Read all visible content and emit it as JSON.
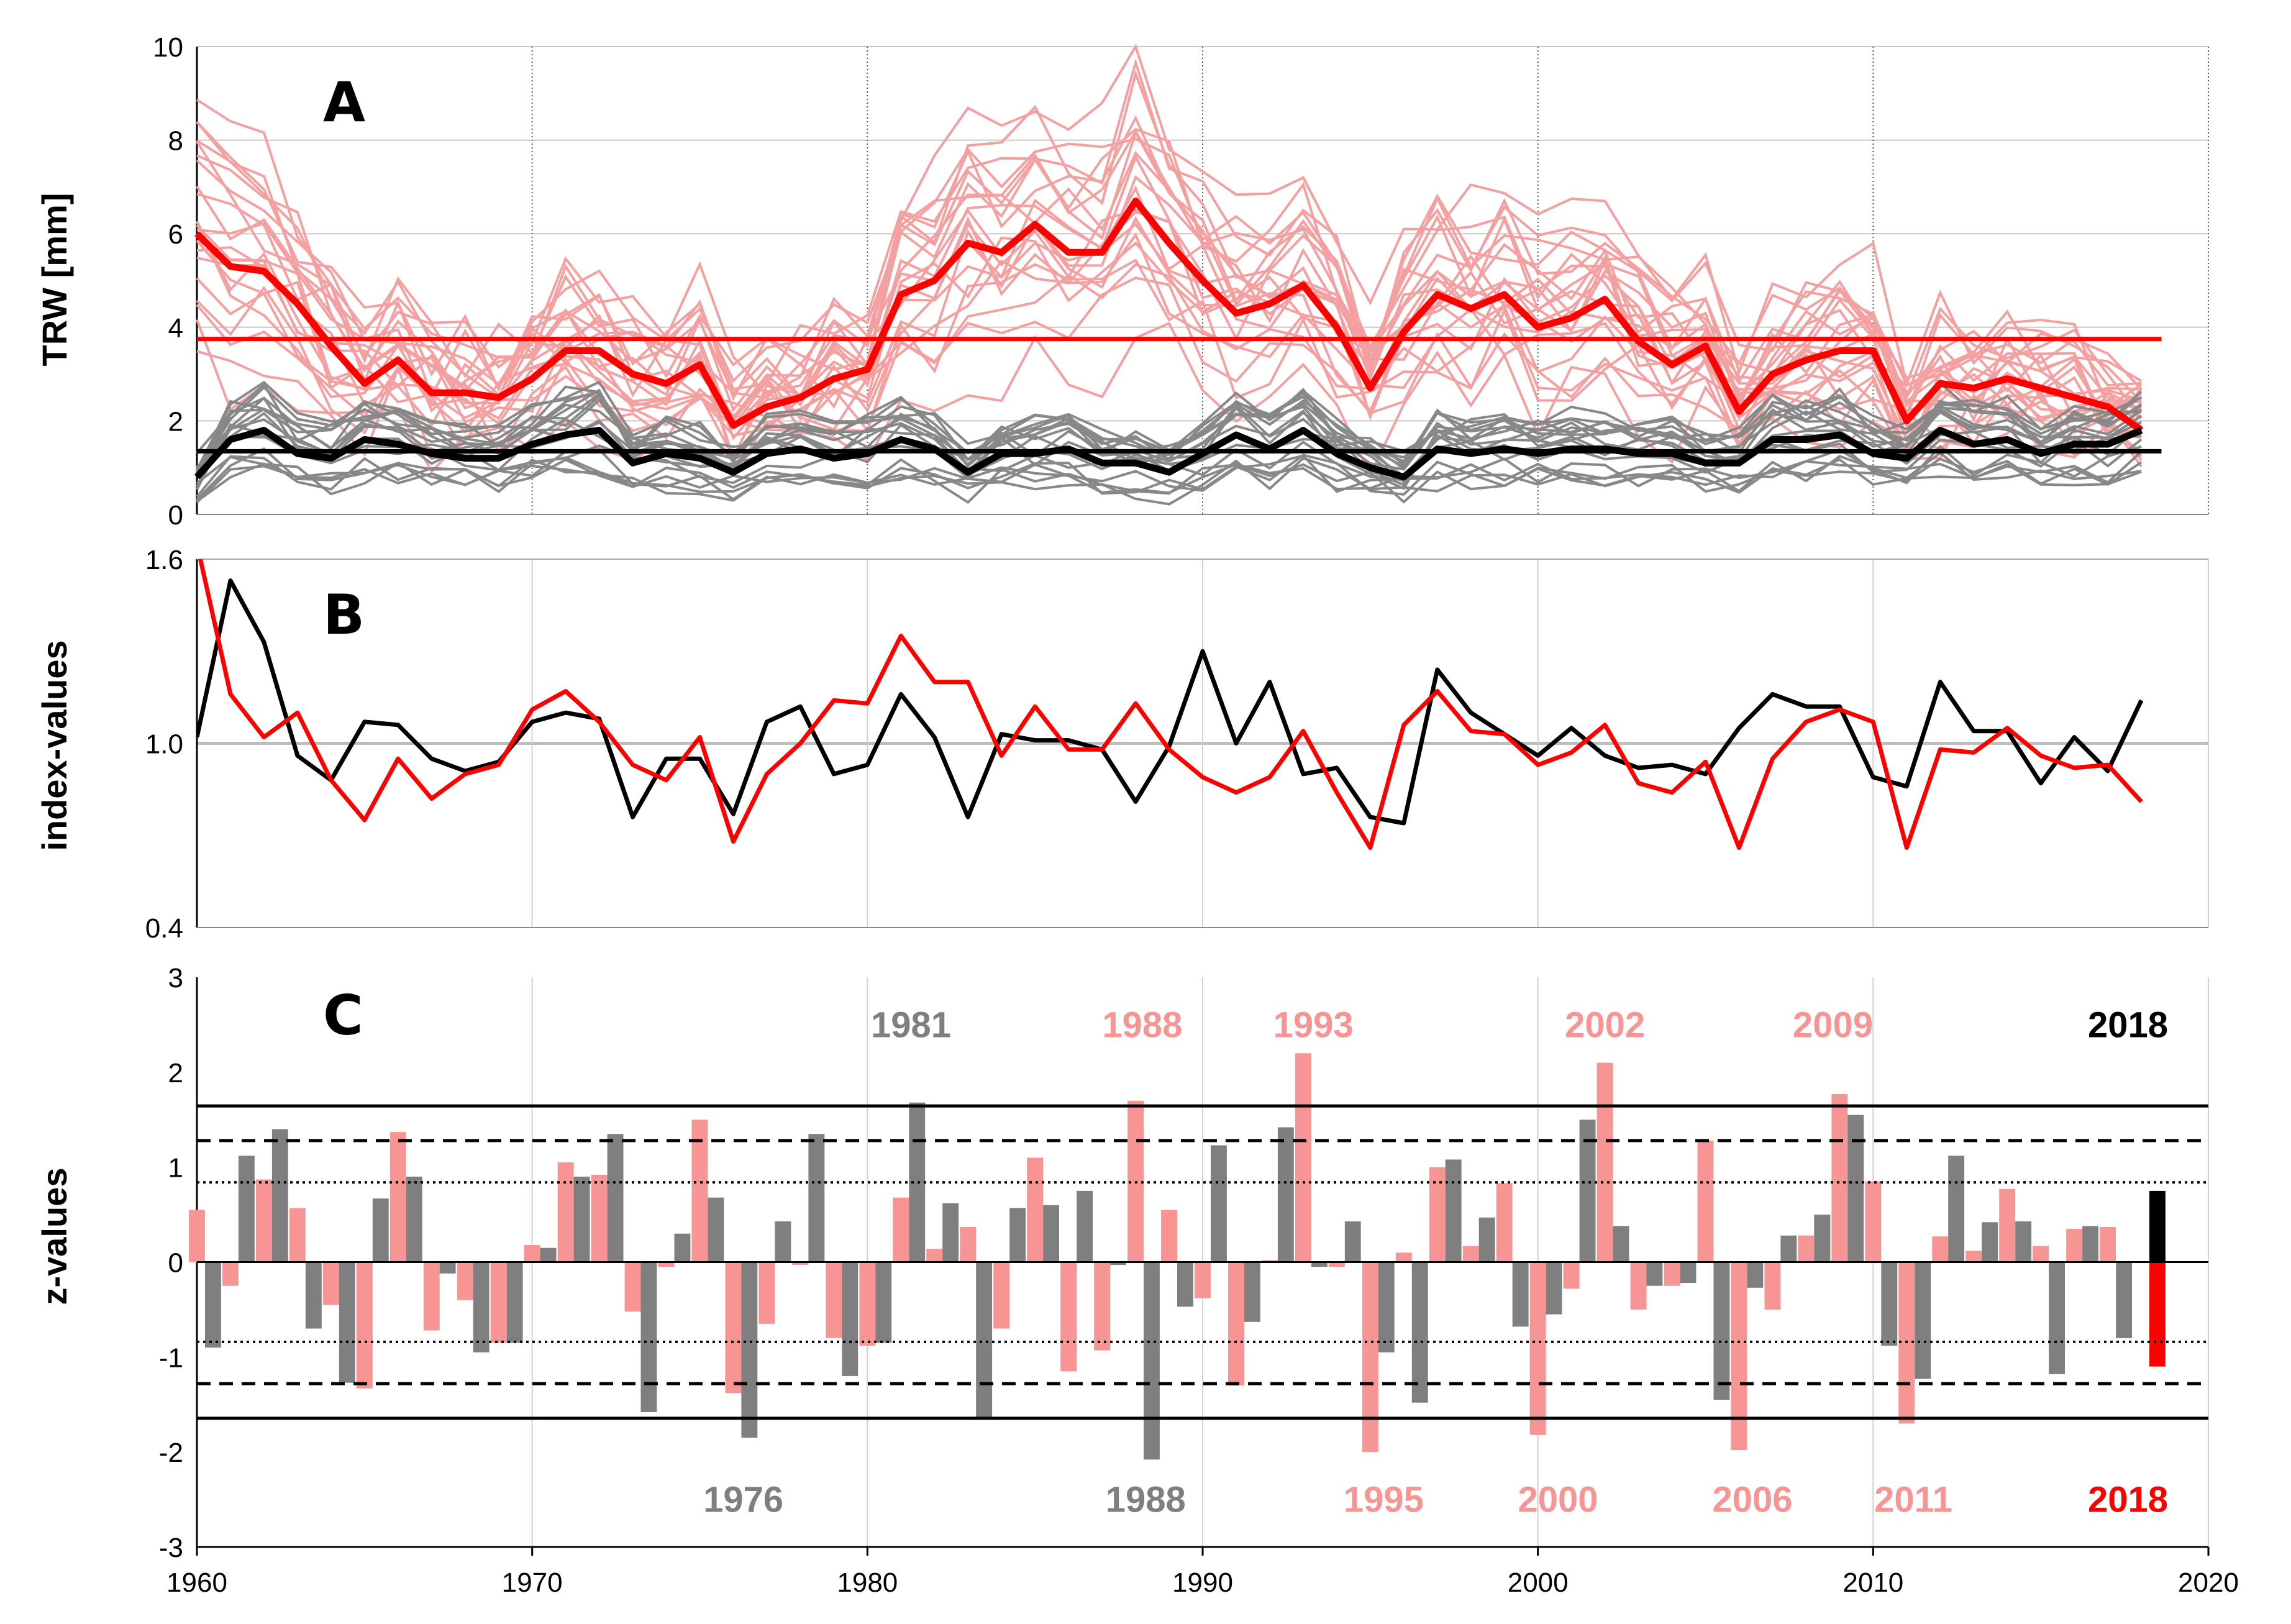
{
  "x_axis": {
    "ticks": [
      "1960",
      "1970",
      "1980",
      "1990",
      "2000",
      "2010",
      "2020"
    ],
    "range": [
      1960,
      2020
    ]
  },
  "colors": {
    "red": "#ff0000",
    "pink": "#f4a0a0",
    "pink_bar": "#f79494",
    "grey": "#888888",
    "grey_bar": "#7f7f7f",
    "black": "#000000"
  },
  "chart_data": [
    {
      "type": "line",
      "panel": "A",
      "ylabel": "TRW [mm]",
      "ylim": [
        0,
        10
      ],
      "yticks": [
        "0",
        "2",
        "4",
        "6",
        "8",
        "10"
      ],
      "grid": true,
      "x": [
        1960,
        1961,
        1962,
        1963,
        1964,
        1965,
        1966,
        1967,
        1968,
        1969,
        1970,
        1971,
        1972,
        1973,
        1974,
        1975,
        1976,
        1977,
        1978,
        1979,
        1980,
        1981,
        1982,
        1983,
        1984,
        1985,
        1986,
        1987,
        1988,
        1989,
        1990,
        1991,
        1992,
        1993,
        1994,
        1995,
        1996,
        1997,
        1998,
        1999,
        2000,
        2001,
        2002,
        2003,
        2004,
        2005,
        2006,
        2007,
        2008,
        2009,
        2010,
        2011,
        2012,
        2013,
        2014,
        2015,
        2016,
        2017,
        2018
      ],
      "series": [
        {
          "role": "red-mean",
          "color": "#ff0000",
          "values": [
            6.0,
            5.3,
            5.2,
            4.5,
            3.6,
            2.8,
            3.3,
            2.6,
            2.6,
            2.5,
            2.9,
            3.5,
            3.5,
            3.0,
            2.8,
            3.2,
            1.9,
            2.3,
            2.5,
            2.9,
            3.1,
            4.7,
            5.0,
            5.8,
            5.6,
            6.2,
            5.6,
            5.6,
            6.7,
            5.8,
            5.0,
            4.3,
            4.5,
            4.9,
            4.0,
            2.7,
            3.9,
            4.7,
            4.4,
            4.7,
            4.0,
            4.2,
            4.6,
            3.7,
            3.2,
            3.6,
            2.2,
            3.0,
            3.3,
            3.5,
            3.5,
            2.0,
            2.8,
            2.7,
            2.9,
            2.7,
            2.5,
            2.3,
            1.8
          ]
        },
        {
          "role": "black-mean",
          "color": "#000000",
          "values": [
            0.8,
            1.6,
            1.8,
            1.3,
            1.2,
            1.6,
            1.5,
            1.3,
            1.2,
            1.2,
            1.5,
            1.7,
            1.8,
            1.1,
            1.3,
            1.2,
            0.9,
            1.3,
            1.4,
            1.2,
            1.3,
            1.6,
            1.4,
            0.9,
            1.3,
            1.3,
            1.4,
            1.1,
            1.1,
            0.9,
            1.3,
            1.7,
            1.4,
            1.8,
            1.3,
            1.0,
            0.8,
            1.4,
            1.3,
            1.4,
            1.3,
            1.4,
            1.4,
            1.3,
            1.3,
            1.1,
            1.1,
            1.6,
            1.6,
            1.7,
            1.3,
            1.2,
            1.8,
            1.5,
            1.6,
            1.3,
            1.5,
            1.5,
            1.8
          ]
        }
      ],
      "reference_lines": [
        {
          "y": 3.75,
          "color": "#ff0000"
        },
        {
          "y": 1.35,
          "color": "#000000"
        }
      ]
    },
    {
      "type": "line",
      "panel": "B",
      "ylabel": "index-values",
      "ylim": [
        0.4,
        1.6
      ],
      "yticks": [
        "0.4",
        "1.0",
        "1.6"
      ],
      "reference_y": 1.0,
      "grid": true,
      "x": [
        1960,
        1961,
        1962,
        1963,
        1964,
        1965,
        1966,
        1967,
        1968,
        1969,
        1970,
        1971,
        1972,
        1973,
        1974,
        1975,
        1976,
        1977,
        1978,
        1979,
        1980,
        1981,
        1982,
        1983,
        1984,
        1985,
        1986,
        1987,
        1988,
        1989,
        1990,
        1991,
        1992,
        1993,
        1994,
        1995,
        1996,
        1997,
        1998,
        1999,
        2000,
        2001,
        2002,
        2003,
        2004,
        2005,
        2006,
        2007,
        2008,
        2009,
        2010,
        2011,
        2012,
        2013,
        2014,
        2015,
        2016,
        2017,
        2018
      ],
      "series": [
        {
          "color": "#000000",
          "values": [
            1.02,
            1.53,
            1.33,
            0.96,
            0.88,
            1.07,
            1.06,
            0.95,
            0.91,
            0.94,
            1.07,
            1.1,
            1.08,
            0.76,
            0.95,
            0.95,
            0.77,
            1.07,
            1.12,
            0.9,
            0.93,
            1.16,
            1.02,
            0.76,
            1.03,
            1.01,
            1.01,
            0.98,
            0.81,
            0.99,
            1.3,
            1.0,
            1.2,
            0.9,
            0.92,
            0.76,
            0.74,
            1.24,
            1.1,
            1.03,
            0.96,
            1.05,
            0.96,
            0.92,
            0.93,
            0.9,
            1.05,
            1.16,
            1.12,
            1.12,
            0.89,
            0.86,
            1.2,
            1.04,
            1.04,
            0.87,
            1.02,
            0.91,
            1.14
          ]
        },
        {
          "color": "#ff0000",
          "values": [
            1.65,
            1.16,
            1.02,
            1.1,
            0.88,
            0.75,
            0.95,
            0.82,
            0.9,
            0.93,
            1.11,
            1.17,
            1.07,
            0.93,
            0.88,
            1.02,
            0.68,
            0.9,
            1.0,
            1.14,
            1.13,
            1.35,
            1.2,
            1.2,
            0.96,
            1.12,
            0.98,
            0.98,
            1.13,
            0.98,
            0.89,
            0.84,
            0.89,
            1.04,
            0.84,
            0.66,
            1.06,
            1.17,
            1.04,
            1.03,
            0.93,
            0.97,
            1.06,
            0.87,
            0.84,
            0.94,
            0.66,
            0.95,
            1.07,
            1.11,
            1.07,
            0.66,
            0.98,
            0.97,
            1.05,
            0.96,
            0.92,
            0.93,
            0.81
          ]
        }
      ]
    },
    {
      "type": "bar",
      "panel": "C",
      "ylabel": "z-values",
      "ylim": [
        -3,
        3
      ],
      "yticks": [
        "-3",
        "-2",
        "-1",
        "0",
        "1",
        "2",
        "3"
      ],
      "x": [
        1960,
        1961,
        1962,
        1963,
        1964,
        1965,
        1966,
        1967,
        1968,
        1969,
        1970,
        1971,
        1972,
        1973,
        1974,
        1975,
        1976,
        1977,
        1978,
        1979,
        1980,
        1981,
        1982,
        1983,
        1984,
        1985,
        1986,
        1987,
        1988,
        1989,
        1990,
        1991,
        1992,
        1993,
        1994,
        1995,
        1996,
        1997,
        1998,
        1999,
        2000,
        2001,
        2002,
        2003,
        2004,
        2005,
        2006,
        2007,
        2008,
        2009,
        2010,
        2011,
        2012,
        2013,
        2014,
        2015,
        2016,
        2017,
        2018
      ],
      "series": [
        {
          "color": "#f79494",
          "values": [
            0.55,
            -0.25,
            0.87,
            0.57,
            -0.45,
            -1.33,
            1.37,
            -0.72,
            -0.4,
            -0.85,
            0.18,
            1.05,
            0.92,
            -0.52,
            -0.05,
            1.5,
            -1.38,
            -0.65,
            -0.03,
            -0.8,
            -0.88,
            0.68,
            0.14,
            0.37,
            -0.7,
            1.1,
            -1.15,
            -0.93,
            1.7,
            0.55,
            -0.38,
            -1.3,
            0.02,
            2.2,
            -0.05,
            -2.0,
            0.1,
            1.0,
            0.17,
            0.83,
            -1.82,
            -0.28,
            2.1,
            -0.5,
            -0.25,
            1.28,
            -1.98,
            -0.5,
            0.28,
            1.77,
            0.85,
            -1.7,
            0.27,
            0.12,
            0.77,
            0.17,
            0.35,
            0.37,
            -1.1
          ]
        },
        {
          "color": "#7f7f7f",
          "values": [
            -0.9,
            1.12,
            1.4,
            -0.7,
            -1.27,
            0.67,
            0.9,
            -0.12,
            -0.95,
            -0.85,
            0.15,
            0.9,
            1.35,
            -1.58,
            0.3,
            0.68,
            -1.85,
            0.43,
            1.35,
            -1.2,
            -0.85,
            1.68,
            0.62,
            -1.65,
            0.57,
            0.6,
            0.75,
            -0.03,
            -2.08,
            -0.47,
            1.23,
            -0.63,
            1.42,
            -0.05,
            0.43,
            -0.95,
            -1.48,
            1.08,
            0.47,
            -0.68,
            -0.55,
            1.5,
            0.38,
            -0.25,
            -0.22,
            -1.45,
            -0.27,
            0.28,
            0.5,
            1.55,
            -0.88,
            -1.23,
            1.12,
            0.42,
            0.43,
            -1.18,
            0.38,
            -0.8,
            0.75
          ]
        }
      ],
      "highlight_bars": [
        {
          "x": 2018,
          "value": 0.75,
          "color": "#000000"
        },
        {
          "x": 2018,
          "value": -1.1,
          "color": "#ff0000"
        }
      ],
      "reference_lines": [
        {
          "y": 1.645,
          "style": "solid"
        },
        {
          "y": 1.28,
          "style": "dashed"
        },
        {
          "y": 0.84,
          "style": "dotted"
        },
        {
          "y": -0.84,
          "style": "dotted"
        },
        {
          "y": -1.28,
          "style": "dashed"
        },
        {
          "y": -1.645,
          "style": "solid"
        }
      ],
      "annotations": [
        {
          "text": "1981",
          "x": 1981.3,
          "y": 2.5,
          "color": "#7f7f7f"
        },
        {
          "text": "1988",
          "x": 1988.2,
          "y": 2.5,
          "color": "#f79494"
        },
        {
          "text": "1993",
          "x": 1993.3,
          "y": 2.5,
          "color": "#f79494"
        },
        {
          "text": "2002",
          "x": 2002.0,
          "y": 2.5,
          "color": "#f79494"
        },
        {
          "text": "2009",
          "x": 2008.8,
          "y": 2.5,
          "color": "#f79494"
        },
        {
          "text": "2018",
          "x": 2017.6,
          "y": 2.5,
          "color": "#000000"
        },
        {
          "text": "1976",
          "x": 1976.3,
          "y": -2.5,
          "color": "#7f7f7f"
        },
        {
          "text": "1988",
          "x": 1988.3,
          "y": -2.5,
          "color": "#7f7f7f"
        },
        {
          "text": "1995",
          "x": 1995.4,
          "y": -2.5,
          "color": "#f79494"
        },
        {
          "text": "2000",
          "x": 2000.6,
          "y": -2.5,
          "color": "#f79494"
        },
        {
          "text": "2006",
          "x": 2006.4,
          "y": -2.5,
          "color": "#f79494"
        },
        {
          "text": "2011",
          "x": 2011.2,
          "y": -2.5,
          "color": "#f79494"
        },
        {
          "text": "2018",
          "x": 2017.6,
          "y": -2.5,
          "color": "#ff0000"
        }
      ]
    }
  ]
}
